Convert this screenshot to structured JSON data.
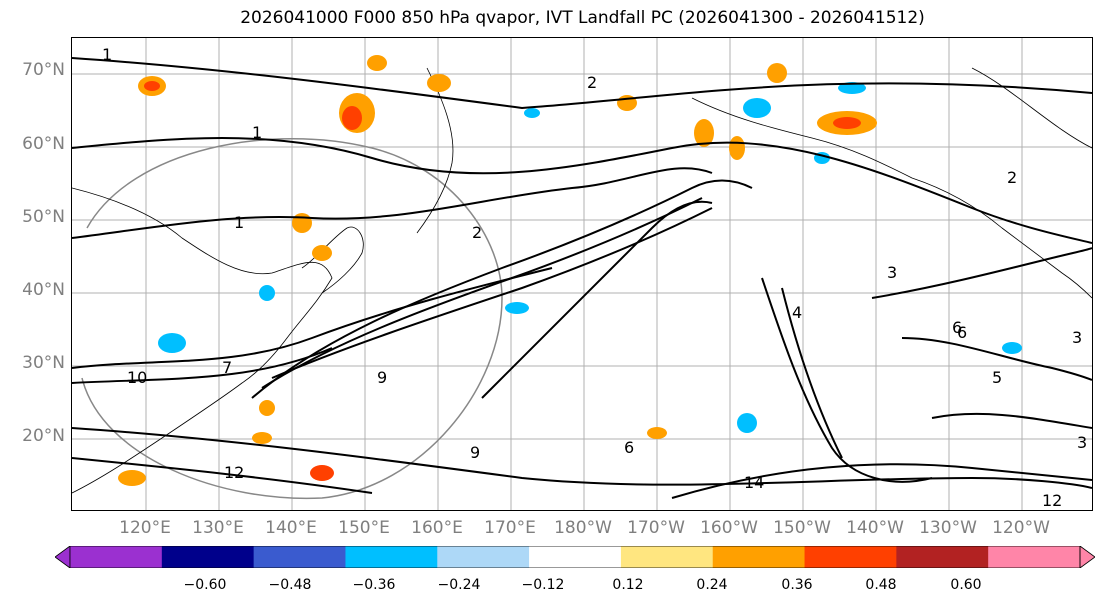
{
  "title": "2026041000 F000 850 hPa qvapor, IVT Landfall PC (2026041300 - 2026041512)",
  "map": {
    "lat_labels": [
      "70°N",
      "60°N",
      "50°N",
      "40°N",
      "30°N",
      "20°N"
    ],
    "lon_labels": [
      "120°E",
      "130°E",
      "140°E",
      "150°E",
      "160°E",
      "170°E",
      "180°W",
      "170°W",
      "160°W",
      "150°W",
      "140°W",
      "130°W",
      "120°W"
    ],
    "contour_labels": [
      "1",
      "2",
      "1",
      "2",
      "1",
      "2",
      "3",
      "4",
      "5",
      "6",
      "6",
      "7",
      "9",
      "9",
      "10",
      "12",
      "14",
      "12",
      "3",
      "6",
      "3"
    ]
  },
  "colorbar": {
    "colors": [
      "#9b30d0",
      "#00008b",
      "#3a5bcf",
      "#00bfff",
      "#add8f7",
      "#ffffff",
      "#ffe680",
      "#ffa000",
      "#ff4000",
      "#b22222",
      "#ff85a8"
    ],
    "tick_labels": [
      "−0.60",
      "−0.48",
      "−0.36",
      "−0.24",
      "−0.12",
      "0.12",
      "0.24",
      "0.36",
      "0.48",
      "0.60"
    ],
    "label_colors": {
      "tick": "#000000"
    }
  }
}
